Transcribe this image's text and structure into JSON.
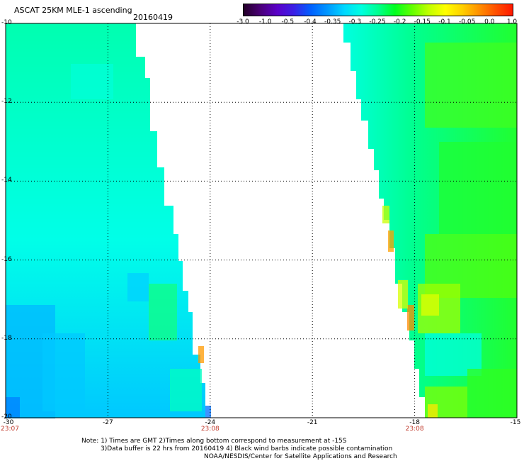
{
  "header": {
    "title": "ASCAT 25KM MLE-1 ascending",
    "date": "20160419"
  },
  "colorbar": {
    "labels": [
      "-3.0",
      "-1.0",
      "-0.5",
      "-0.4",
      "-0.35",
      "-0.3",
      "-0.25",
      "-0.2",
      "-0.15",
      "-0.1",
      "-0.05",
      "0.0",
      "1.0"
    ],
    "colors": [
      "#240028",
      "#4a0078",
      "#5a00c8",
      "#3a20e6",
      "#0060ff",
      "#0098ff",
      "#00d8ff",
      "#00ffe0",
      "#00ff90",
      "#00ff20",
      "#60ff00",
      "#c0ff00",
      "#ffff00",
      "#ffd000",
      "#ff9000",
      "#ff5000",
      "#ff1800"
    ]
  },
  "map": {
    "lat_ticks": [
      "-10",
      "-12",
      "-14",
      "-16",
      "-18",
      "-20"
    ],
    "lon_ticks": [
      "-30",
      "-27",
      "-24",
      "-21",
      "-18",
      "-15"
    ],
    "time_labels": [
      {
        "lon": "-30",
        "text": "23:07"
      },
      {
        "lon": "-24",
        "text": "23:08"
      },
      {
        "lon": "-18",
        "text": "23:08"
      }
    ]
  },
  "notes": {
    "line1": "Note: 1) Times are GMT 2)Times along bottom correspond to measurement at -15S",
    "line2": "3)Data buffer is 22 hrs from 20160419 4) Black wind barbs indicate possible contamination",
    "line3": "NOAA/NESDIS/Center for Satellite Applications and Research"
  }
}
